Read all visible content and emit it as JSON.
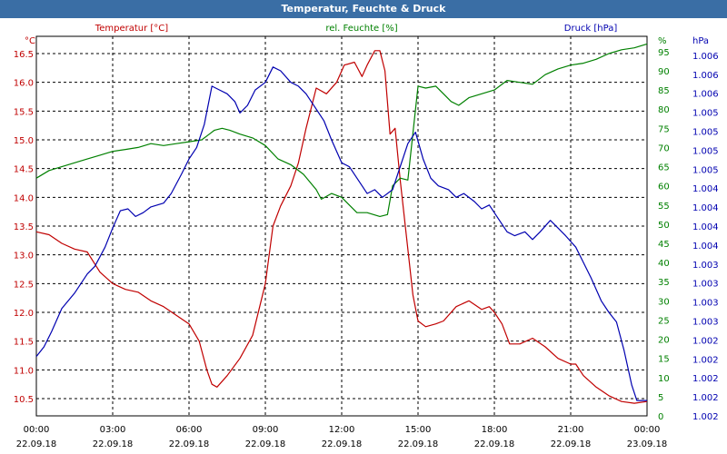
{
  "window": {
    "title": "Temperatur, Feuchte & Druck"
  },
  "chart_data": {
    "type": "line",
    "title": "Temperatur, Feuchte & Druck",
    "x_ticks": [
      {
        "time": "00:00",
        "date": "22.09.18"
      },
      {
        "time": "03:00",
        "date": "22.09.18"
      },
      {
        "time": "06:00",
        "date": "22.09.18"
      },
      {
        "time": "09:00",
        "date": "22.09.18"
      },
      {
        "time": "12:00",
        "date": "22.09.18"
      },
      {
        "time": "15:00",
        "date": "22.09.18"
      },
      {
        "time": "18:00",
        "date": "22.09.18"
      },
      {
        "time": "21:00",
        "date": "22.09.18"
      },
      {
        "time": "00:00",
        "date": "23.09.18"
      }
    ],
    "x_range_hours": [
      0,
      24
    ],
    "grid": true,
    "axes": {
      "temperature": {
        "unit_label": "°C",
        "range": [
          10.2,
          16.8
        ],
        "ticks": [
          "10.5",
          "11.0",
          "11.5",
          "12.0",
          "12.5",
          "13.0",
          "13.5",
          "14.0",
          "14.5",
          "15.0",
          "15.5",
          "16.0",
          "16.5"
        ],
        "color": "#c00000"
      },
      "humidity": {
        "unit_label": "%",
        "range": [
          0,
          99
        ],
        "ticks": [
          "0",
          "5",
          "10",
          "15",
          "20",
          "25",
          "30",
          "35",
          "40",
          "45",
          "50",
          "55",
          "60",
          "65",
          "70",
          "75",
          "80",
          "85",
          "90",
          "95"
        ],
        "color": "#008000"
      },
      "pressure": {
        "unit_label": "hPa",
        "tick_labels": [
          "1.002",
          "1.002",
          "1.002",
          "1.002",
          "1.002",
          "1.003",
          "1.003",
          "1.003",
          "1.003",
          "1.004",
          "1.004",
          "1.004",
          "1.004",
          "1.005",
          "1.005",
          "1.005",
          "1.005",
          "1.006",
          "1.006",
          "1.006"
        ],
        "color": "#0000b0"
      }
    },
    "series": [
      {
        "name": "Temperatur [°C]",
        "axis": "temperature",
        "color": "#c00000",
        "points": [
          [
            0,
            13.4
          ],
          [
            0.5,
            13.35
          ],
          [
            1,
            13.2
          ],
          [
            1.5,
            13.1
          ],
          [
            2,
            13.05
          ],
          [
            2.5,
            12.7
          ],
          [
            3,
            12.5
          ],
          [
            3.5,
            12.4
          ],
          [
            4,
            12.35
          ],
          [
            4.5,
            12.2
          ],
          [
            5,
            12.1
          ],
          [
            5.5,
            11.95
          ],
          [
            6,
            11.8
          ],
          [
            6.4,
            11.5
          ],
          [
            6.7,
            11.0
          ],
          [
            6.9,
            10.75
          ],
          [
            7.1,
            10.7
          ],
          [
            7.5,
            10.9
          ],
          [
            8,
            11.2
          ],
          [
            8.5,
            11.6
          ],
          [
            9,
            12.5
          ],
          [
            9.3,
            13.5
          ],
          [
            9.6,
            13.85
          ],
          [
            10,
            14.2
          ],
          [
            10.3,
            14.6
          ],
          [
            10.6,
            15.2
          ],
          [
            11,
            15.9
          ],
          [
            11.4,
            15.8
          ],
          [
            11.8,
            16.0
          ],
          [
            12.1,
            16.3
          ],
          [
            12.5,
            16.35
          ],
          [
            12.8,
            16.1
          ],
          [
            13.0,
            16.3
          ],
          [
            13.3,
            16.55
          ],
          [
            13.5,
            16.55
          ],
          [
            13.7,
            16.2
          ],
          [
            13.9,
            15.1
          ],
          [
            14.1,
            15.2
          ],
          [
            14.3,
            14.3
          ],
          [
            14.5,
            13.5
          ],
          [
            14.8,
            12.3
          ],
          [
            15.0,
            11.85
          ],
          [
            15.3,
            11.75
          ],
          [
            15.7,
            11.8
          ],
          [
            16,
            11.85
          ],
          [
            16.5,
            12.1
          ],
          [
            17,
            12.2
          ],
          [
            17.5,
            12.05
          ],
          [
            17.8,
            12.1
          ],
          [
            18,
            12.0
          ],
          [
            18.3,
            11.8
          ],
          [
            18.6,
            11.45
          ],
          [
            19,
            11.45
          ],
          [
            19.5,
            11.55
          ],
          [
            20,
            11.4
          ],
          [
            20.5,
            11.2
          ],
          [
            21,
            11.1
          ],
          [
            21.2,
            11.1
          ],
          [
            21.5,
            10.9
          ],
          [
            22,
            10.7
          ],
          [
            22.5,
            10.55
          ],
          [
            23,
            10.45
          ],
          [
            23.5,
            10.42
          ],
          [
            24,
            10.45
          ]
        ]
      },
      {
        "name": "rel. Feuchte [%]",
        "axis": "humidity",
        "color": "#008000",
        "points": [
          [
            0,
            62
          ],
          [
            0.5,
            64
          ],
          [
            1,
            65
          ],
          [
            1.5,
            66
          ],
          [
            2,
            67
          ],
          [
            2.5,
            68
          ],
          [
            3,
            69
          ],
          [
            3.5,
            69.5
          ],
          [
            4,
            70
          ],
          [
            4.5,
            71
          ],
          [
            5,
            70.5
          ],
          [
            5.5,
            71
          ],
          [
            6,
            71.5
          ],
          [
            6.5,
            72
          ],
          [
            6.8,
            73.5
          ],
          [
            7,
            74.5
          ],
          [
            7.3,
            75
          ],
          [
            7.6,
            74.5
          ],
          [
            8,
            73.5
          ],
          [
            8.5,
            72.5
          ],
          [
            9,
            70.5
          ],
          [
            9.5,
            67
          ],
          [
            10,
            65.5
          ],
          [
            10.5,
            63
          ],
          [
            11,
            59
          ],
          [
            11.2,
            56.5
          ],
          [
            11.6,
            58
          ],
          [
            12,
            57
          ],
          [
            12.3,
            55
          ],
          [
            12.6,
            53
          ],
          [
            13,
            53
          ],
          [
            13.5,
            52
          ],
          [
            13.8,
            52.5
          ],
          [
            14,
            60
          ],
          [
            14.3,
            62
          ],
          [
            14.6,
            61.5
          ],
          [
            15,
            86
          ],
          [
            15.3,
            85.5
          ],
          [
            15.7,
            86
          ],
          [
            16,
            84
          ],
          [
            16.3,
            82
          ],
          [
            16.6,
            81
          ],
          [
            17,
            83
          ],
          [
            17.5,
            84
          ],
          [
            18,
            85
          ],
          [
            18.5,
            87.5
          ],
          [
            19,
            87
          ],
          [
            19.5,
            86.5
          ],
          [
            20,
            89
          ],
          [
            20.5,
            90.5
          ],
          [
            21,
            91.5
          ],
          [
            21.5,
            92
          ],
          [
            22,
            93
          ],
          [
            22.5,
            94.5
          ],
          [
            23,
            95.5
          ],
          [
            23.5,
            96
          ],
          [
            24,
            97
          ]
        ]
      },
      {
        "name": "Druck [hPa]",
        "axis": "pressure",
        "color": "#0000b0",
        "points": [
          [
            0,
            15.5
          ],
          [
            0.3,
            18
          ],
          [
            0.6,
            22
          ],
          [
            1,
            28
          ],
          [
            1.5,
            32
          ],
          [
            2,
            37
          ],
          [
            2.3,
            39
          ],
          [
            2.7,
            44
          ],
          [
            3,
            49
          ],
          [
            3.3,
            53.5
          ],
          [
            3.6,
            54
          ],
          [
            3.9,
            52
          ],
          [
            4.2,
            53
          ],
          [
            4.5,
            54.5
          ],
          [
            5,
            55.5
          ],
          [
            5.3,
            58
          ],
          [
            5.7,
            63
          ],
          [
            6,
            67
          ],
          [
            6.3,
            70
          ],
          [
            6.6,
            76
          ],
          [
            6.9,
            86
          ],
          [
            7.2,
            85
          ],
          [
            7.5,
            84
          ],
          [
            7.8,
            82
          ],
          [
            8,
            79
          ],
          [
            8.3,
            81
          ],
          [
            8.6,
            85
          ],
          [
            9,
            87
          ],
          [
            9.3,
            91
          ],
          [
            9.6,
            90
          ],
          [
            10,
            87
          ],
          [
            10.3,
            86
          ],
          [
            10.6,
            84
          ],
          [
            11,
            80
          ],
          [
            11.3,
            77
          ],
          [
            11.6,
            72
          ],
          [
            12,
            66
          ],
          [
            12.3,
            65
          ],
          [
            12.6,
            62
          ],
          [
            13,
            58
          ],
          [
            13.3,
            59
          ],
          [
            13.6,
            57
          ],
          [
            14,
            59
          ],
          [
            14.2,
            63
          ],
          [
            14.6,
            71
          ],
          [
            14.9,
            74
          ],
          [
            15.2,
            67
          ],
          [
            15.5,
            62
          ],
          [
            15.8,
            60
          ],
          [
            16.2,
            59
          ],
          [
            16.5,
            57
          ],
          [
            16.8,
            58
          ],
          [
            17.2,
            56
          ],
          [
            17.5,
            54
          ],
          [
            17.8,
            55
          ],
          [
            18.2,
            51
          ],
          [
            18.5,
            48
          ],
          [
            18.8,
            47
          ],
          [
            19.2,
            48
          ],
          [
            19.5,
            46
          ],
          [
            19.8,
            48
          ],
          [
            20.2,
            51
          ],
          [
            20.5,
            49
          ],
          [
            20.8,
            47
          ],
          [
            21.2,
            44
          ],
          [
            21.5,
            40
          ],
          [
            21.8,
            36
          ],
          [
            22.2,
            30
          ],
          [
            22.5,
            27
          ],
          [
            22.8,
            24.5
          ],
          [
            23.1,
            17
          ],
          [
            23.4,
            8
          ],
          [
            23.6,
            4
          ],
          [
            24,
            4
          ]
        ]
      }
    ]
  }
}
